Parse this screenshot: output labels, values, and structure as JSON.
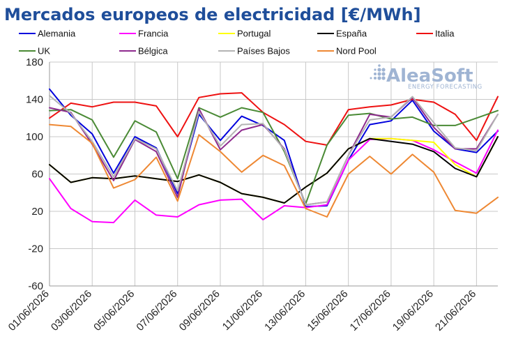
{
  "colors": {
    "title": "#1f4e9a",
    "grid": "#c8c8c8",
    "logo": "#9fb4d3"
  },
  "logo": {
    "name": "AleaSoft",
    "tagline": "ENERGY FORECASTING"
  },
  "chart_data": {
    "type": "line",
    "title": "Mercados europeos de electricidad [€/MWh]",
    "xlabel": "",
    "ylabel": "",
    "ylim": [
      -60,
      180
    ],
    "yticks": [
      180,
      140,
      100,
      60,
      20,
      -20,
      -60
    ],
    "grid": true,
    "legend_position": "top",
    "x": [
      "01/06/2026",
      "02/06/2026",
      "03/06/2026",
      "04/06/2026",
      "05/06/2026",
      "06/06/2026",
      "07/06/2026",
      "08/06/2026",
      "09/06/2026",
      "10/06/2026",
      "11/06/2026",
      "12/06/2026",
      "13/06/2026",
      "14/06/2026",
      "15/06/2026",
      "16/06/2026",
      "17/06/2026",
      "18/06/2026",
      "19/06/2026",
      "20/06/2026",
      "21/06/2026",
      "22/06/2026"
    ],
    "xtick_labels": [
      "01/06/2026",
      "03/06/2026",
      "05/06/2026",
      "07/06/2026",
      "09/06/2026",
      "11/06/2026",
      "13/06/2026",
      "15/06/2026",
      "17/06/2026",
      "19/06/2026",
      "21/06/2026"
    ],
    "series": [
      {
        "name": "Alemania",
        "color": "#0000dd",
        "values": [
          151,
          123,
          103,
          61,
          100,
          88,
          39,
          124,
          96,
          122,
          112,
          96,
          25,
          26,
          75,
          113,
          117,
          139,
          106,
          87,
          83,
          106
        ]
      },
      {
        "name": "Francia",
        "color": "#ff00ff",
        "values": [
          55,
          23,
          9,
          8,
          32,
          16,
          14,
          27,
          32,
          33,
          11,
          26,
          24,
          27,
          75,
          97,
          98,
          96,
          86,
          73,
          61,
          107
        ]
      },
      {
        "name": "Portugal",
        "color": "#ffff00",
        "values": [
          70,
          51,
          56,
          55,
          58,
          55,
          52,
          59,
          51,
          39,
          35,
          29,
          46,
          61,
          87,
          98,
          98,
          96,
          94,
          70,
          57,
          100
        ]
      },
      {
        "name": "España",
        "color": "#000000",
        "values": [
          70,
          51,
          56,
          55,
          58,
          55,
          52,
          59,
          51,
          39,
          35,
          29,
          46,
          61,
          87,
          98,
          95,
          92,
          84,
          66,
          57,
          100
        ]
      },
      {
        "name": "Italia",
        "color": "#ee1111",
        "values": [
          120,
          136,
          132,
          137,
          137,
          133,
          100,
          142,
          146,
          147,
          126,
          113,
          95,
          91,
          129,
          132,
          134,
          140,
          137,
          124,
          96,
          143
        ]
      },
      {
        "name": "UK",
        "color": "#4a8a35",
        "values": [
          128,
          129,
          118,
          78,
          117,
          105,
          55,
          131,
          121,
          131,
          126,
          84,
          28,
          91,
          123,
          125,
          119,
          121,
          112,
          112,
          120,
          128
        ]
      },
      {
        "name": "Bélgica",
        "color": "#8e2a8e",
        "values": [
          131,
          126,
          92,
          53,
          97,
          84,
          35,
          130,
          86,
          107,
          113,
          87,
          27,
          30,
          80,
          124,
          121,
          142,
          110,
          87,
          87,
          124
        ]
      },
      {
        "name": "Países Bajos",
        "color": "#b3b3b3",
        "values": [
          144,
          125,
          95,
          57,
          98,
          87,
          42,
          127,
          90,
          113,
          114,
          86,
          27,
          30,
          80,
          118,
          121,
          143,
          115,
          88,
          85,
          124
        ]
      },
      {
        "name": "Nord Pool",
        "color": "#ee8833",
        "values": [
          113,
          111,
          93,
          45,
          54,
          78,
          31,
          102,
          84,
          62,
          80,
          69,
          23,
          14,
          60,
          79,
          60,
          81,
          62,
          21,
          18,
          35
        ]
      }
    ]
  }
}
